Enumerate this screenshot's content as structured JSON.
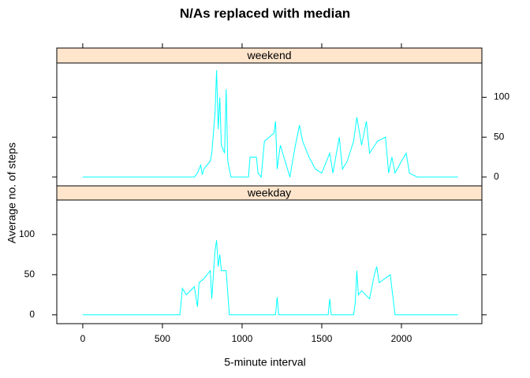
{
  "chart_data": {
    "type": "line",
    "title": "N/As replaced with median",
    "x_label": "5-minute interval",
    "y_label": "Average no. of steps",
    "xlim": [
      -163,
      2505
    ],
    "xticks": [
      0,
      500,
      1000,
      1500,
      2000
    ],
    "ylim": [
      -11,
      143
    ],
    "yticks": [
      0,
      50,
      100
    ],
    "series": [
      {
        "name": "weekend",
        "color": "#00ffff",
        "x": [
          0,
          700,
          720,
          740,
          750,
          760,
          800,
          810,
          830,
          840,
          850,
          860,
          870,
          890,
          900,
          910,
          930,
          1040,
          1050,
          1090,
          1100,
          1120,
          1140,
          1200,
          1210,
          1220,
          1240,
          1270,
          1300,
          1330,
          1360,
          1380,
          1420,
          1460,
          1500,
          1550,
          1570,
          1610,
          1630,
          1660,
          1700,
          1720,
          1750,
          1780,
          1800,
          1850,
          1900,
          1920,
          1940,
          1960,
          2000,
          2030,
          2050,
          2100,
          2355
        ],
        "values": [
          0,
          0,
          5,
          15,
          3,
          10,
          20,
          30,
          80,
          134,
          60,
          100,
          40,
          30,
          110,
          20,
          0,
          0,
          25,
          25,
          5,
          0,
          45,
          55,
          70,
          10,
          40,
          20,
          0,
          35,
          65,
          45,
          25,
          10,
          5,
          30,
          5,
          50,
          10,
          20,
          45,
          75,
          40,
          70,
          30,
          45,
          50,
          5,
          25,
          5,
          20,
          30,
          5,
          0,
          0
        ]
      },
      {
        "name": "weekday",
        "color": "#00ffff",
        "x": [
          0,
          610,
          625,
          650,
          700,
          720,
          730,
          760,
          800,
          810,
          830,
          840,
          850,
          860,
          870,
          900,
          920,
          1210,
          1220,
          1230,
          1540,
          1550,
          1560,
          1700,
          1710,
          1720,
          1730,
          1750,
          1800,
          1830,
          1845,
          1860,
          1930,
          1960,
          2355
        ],
        "values": [
          0,
          0,
          33,
          25,
          35,
          10,
          40,
          45,
          55,
          20,
          80,
          93,
          60,
          75,
          55,
          55,
          0,
          0,
          22,
          0,
          0,
          20,
          0,
          0,
          15,
          55,
          25,
          30,
          20,
          50,
          60,
          40,
          50,
          0,
          0
        ]
      }
    ]
  }
}
